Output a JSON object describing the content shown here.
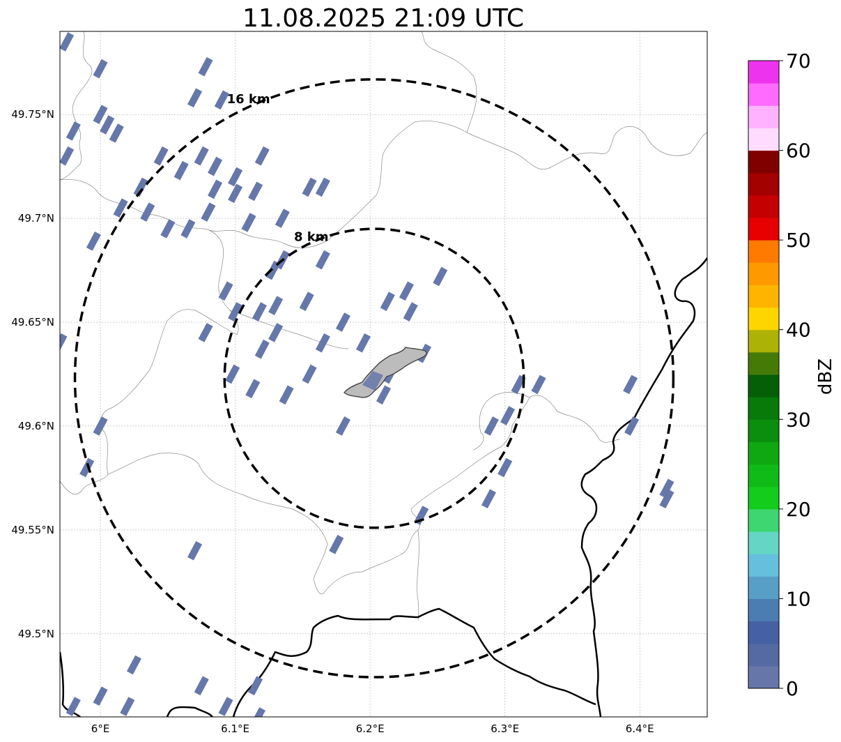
{
  "title": "11.08.2025 21:09 UTC",
  "map": {
    "lon_range": [
      5.97,
      6.45
    ],
    "lat_range": [
      49.46,
      49.79
    ],
    "lon_ticks": [
      {
        "value": 6.0,
        "label": "6°E"
      },
      {
        "value": 6.1,
        "label": "6.1°E"
      },
      {
        "value": 6.2,
        "label": "6.2°E"
      },
      {
        "value": 6.3,
        "label": "6.3°E"
      },
      {
        "value": 6.4,
        "label": "6.4°E"
      }
    ],
    "lat_ticks": [
      {
        "value": 49.75,
        "label": "49.75°N"
      },
      {
        "value": 49.7,
        "label": "49.7°N"
      },
      {
        "value": 49.65,
        "label": "49.65°N"
      },
      {
        "value": 49.6,
        "label": "49.6°N"
      },
      {
        "value": 49.55,
        "label": "49.55°N"
      },
      {
        "value": 49.5,
        "label": "49.5°N"
      }
    ],
    "gridlines": true,
    "center": {
      "lon": 6.203,
      "lat": 49.623
    },
    "range_rings": [
      {
        "radius_km": 8,
        "label": "8 km"
      },
      {
        "radius_km": 16,
        "label": "16 km"
      }
    ],
    "echo_color": "#6677aa",
    "city_outline_color": "#aaaaaa"
  },
  "colorbar": {
    "label": "dBZ",
    "min": 0,
    "max": 70,
    "ticks": [
      "0",
      "10",
      "20",
      "30",
      "40",
      "50",
      "60",
      "70"
    ],
    "colors": [
      "#6676a8",
      "#5569a3",
      "#4560a3",
      "#4b7db3",
      "#589fc8",
      "#66bfdc",
      "#64d6c3",
      "#3dd670",
      "#13cc1b",
      "#10ba17",
      "#0fa712",
      "#0b8d0e",
      "#077a0a",
      "#055f07",
      "#467a07",
      "#adb206",
      "#ffd500",
      "#ffb400",
      "#ff9900",
      "#ff7a00",
      "#e60000",
      "#c50000",
      "#a30000",
      "#800000",
      "#ffdcff",
      "#ffb2ff",
      "#ff6aff",
      "#ee33ee"
    ]
  },
  "radar_echoes": [
    [
      5.975,
      49.785
    ],
    [
      6.0,
      49.772
    ],
    [
      6.012,
      49.741
    ],
    [
      6.035,
      49.703
    ],
    [
      6.06,
      49.723
    ],
    [
      6.07,
      49.758
    ],
    [
      6.078,
      49.773
    ],
    [
      6.09,
      49.757
    ],
    [
      5.98,
      49.742
    ],
    [
      5.975,
      49.73
    ],
    [
      6.015,
      49.705
    ],
    [
      5.995,
      49.689
    ],
    [
      6.065,
      49.695
    ],
    [
      6.075,
      49.73
    ],
    [
      6.1,
      49.712
    ],
    [
      6.11,
      49.698
    ],
    [
      6.085,
      49.714
    ],
    [
      6.093,
      49.665
    ],
    [
      6.078,
      49.645
    ],
    [
      6.08,
      49.703
    ],
    [
      6.1,
      49.655
    ],
    [
      6.118,
      49.655
    ],
    [
      6.128,
      49.675
    ],
    [
      6.135,
      49.68
    ],
    [
      6.13,
      49.645
    ],
    [
      6.12,
      49.637
    ],
    [
      6.098,
      49.625
    ],
    [
      6.113,
      49.618
    ],
    [
      6.138,
      49.615
    ],
    [
      6.153,
      49.66
    ],
    [
      6.165,
      49.68
    ],
    [
      6.18,
      49.6
    ],
    [
      6.13,
      49.658
    ],
    [
      6.155,
      49.625
    ],
    [
      6.165,
      49.64
    ],
    [
      6.18,
      49.65
    ],
    [
      6.195,
      49.64
    ],
    [
      6.213,
      49.66
    ],
    [
      6.252,
      49.672
    ],
    [
      6.227,
      49.665
    ],
    [
      6.29,
      49.6
    ],
    [
      6.302,
      49.605
    ],
    [
      6.31,
      49.62
    ],
    [
      6.325,
      49.62
    ],
    [
      6.393,
      49.62
    ],
    [
      6.394,
      49.6
    ],
    [
      6.3,
      49.58
    ],
    [
      6.288,
      49.565
    ],
    [
      6.238,
      49.557
    ],
    [
      6.175,
      49.543
    ],
    [
      6.07,
      49.54
    ],
    [
      6.025,
      49.485
    ],
    [
      6.0,
      49.47
    ],
    [
      6.02,
      49.465
    ],
    [
      6.075,
      49.475
    ],
    [
      6.093,
      49.465
    ],
    [
      6.115,
      49.475
    ],
    [
      6.117,
      49.46
    ],
    [
      6.42,
      49.57
    ],
    [
      6.42,
      49.565
    ],
    [
      5.98,
      49.465
    ],
    [
      5.99,
      49.58
    ],
    [
      5.97,
      49.64
    ],
    [
      6.0,
      49.6
    ],
    [
      6.135,
      49.7
    ],
    [
      6.155,
      49.715
    ],
    [
      6.115,
      49.713
    ],
    [
      6.12,
      49.73
    ],
    [
      6.1,
      49.72
    ],
    [
      6.085,
      49.725
    ],
    [
      6.23,
      49.655
    ],
    [
      6.24,
      49.635
    ],
    [
      6.03,
      49.715
    ],
    [
      6.05,
      49.695
    ],
    [
      6.045,
      49.73
    ],
    [
      6.005,
      49.745
    ],
    [
      6.0,
      49.75
    ],
    [
      6.165,
      49.715
    ],
    [
      6.215,
      49.625
    ],
    [
      6.21,
      49.615
    ]
  ]
}
